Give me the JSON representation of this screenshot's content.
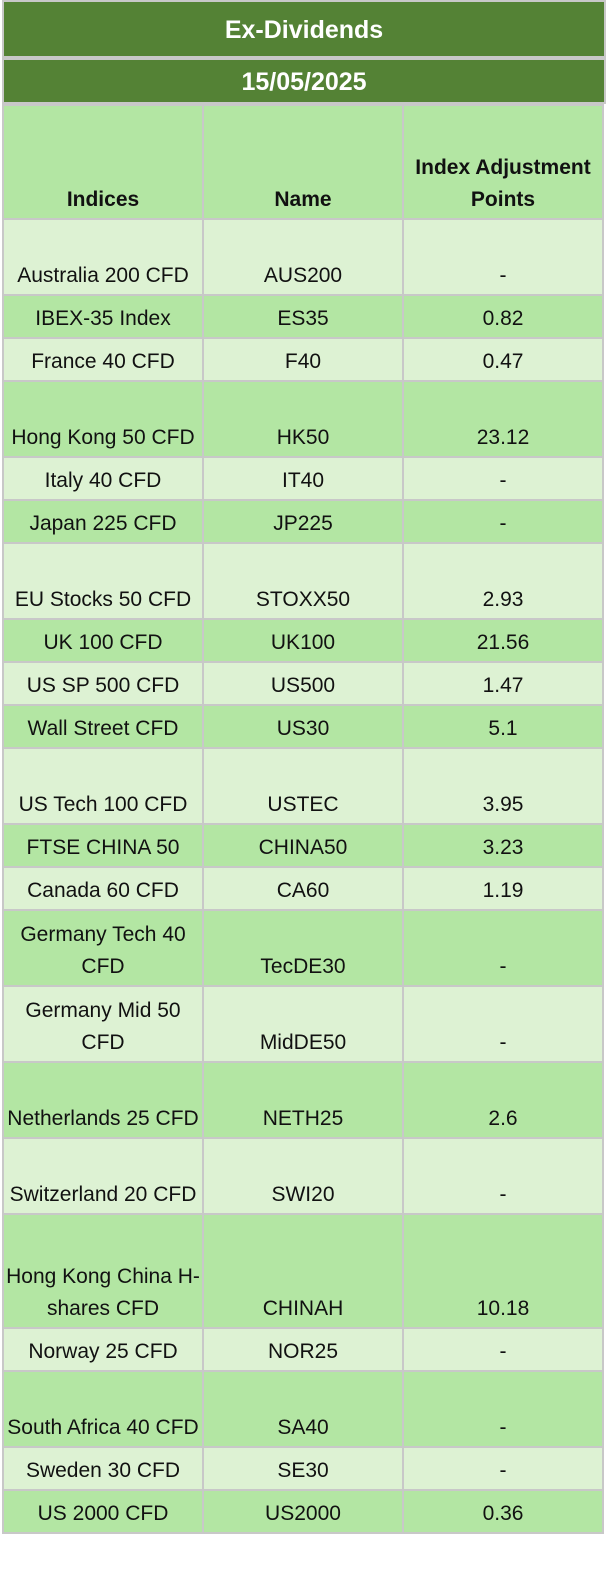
{
  "title": "Ex-Dividends",
  "date": "15/05/2025",
  "headers": {
    "indices": "Indices",
    "name": "Name",
    "points": "Index Adjustment Points"
  },
  "rows": [
    {
      "index": "Australia 200 CFD",
      "name": "AUS200",
      "points": "-"
    },
    {
      "index": "IBEX-35 Index",
      "name": "ES35",
      "points": "0.82"
    },
    {
      "index": "France 40 CFD",
      "name": "F40",
      "points": "0.47"
    },
    {
      "index": "Hong Kong 50 CFD",
      "name": "HK50",
      "points": "23.12"
    },
    {
      "index": "Italy 40 CFD",
      "name": "IT40",
      "points": "-"
    },
    {
      "index": "Japan 225 CFD",
      "name": "JP225",
      "points": "-"
    },
    {
      "index": "EU Stocks 50 CFD",
      "name": "STOXX50",
      "points": "2.93"
    },
    {
      "index": "UK 100 CFD",
      "name": "UK100",
      "points": "21.56"
    },
    {
      "index": "US SP 500 CFD",
      "name": "US500",
      "points": "1.47"
    },
    {
      "index": "Wall Street CFD",
      "name": "US30",
      "points": "5.1"
    },
    {
      "index": "US Tech 100 CFD",
      "name": "USTEC",
      "points": "3.95"
    },
    {
      "index": "FTSE CHINA 50",
      "name": "CHINA50",
      "points": "3.23"
    },
    {
      "index": "Canada 60 CFD",
      "name": "CA60",
      "points": "1.19"
    },
    {
      "index": "Germany Tech 40 CFD",
      "name": "TecDE30",
      "points": "-"
    },
    {
      "index": "Germany Mid 50 CFD",
      "name": "MidDE50",
      "points": "-"
    },
    {
      "index": "Netherlands 25 CFD",
      "name": "NETH25",
      "points": "2.6"
    },
    {
      "index": "Switzerland 20 CFD",
      "name": "SWI20",
      "points": "-"
    },
    {
      "index": "Hong Kong China H-shares CFD",
      "name": "CHINAH",
      "points": "10.18"
    },
    {
      "index": "Norway 25 CFD",
      "name": "NOR25",
      "points": "-"
    },
    {
      "index": "South Africa 40 CFD",
      "name": "SA40",
      "points": "-"
    },
    {
      "index": "Sweden 30 CFD",
      "name": "SE30",
      "points": "-"
    },
    {
      "index": "US 2000 CFD",
      "name": "US2000",
      "points": "0.36"
    }
  ]
}
